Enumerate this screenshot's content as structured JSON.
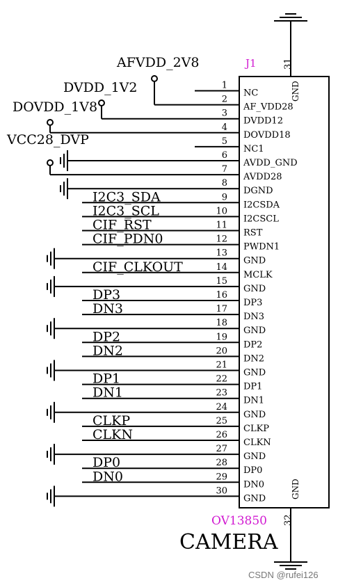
{
  "component": {
    "designator": "J1",
    "part": "OV13850",
    "title": "CAMERA",
    "top_pin": "31",
    "top_pin_name": "GND",
    "bottom_pin": "32",
    "bottom_pin_name": "GND"
  },
  "pins": [
    {
      "num": "1",
      "name": "NC"
    },
    {
      "num": "2",
      "name": "AF_VDD28"
    },
    {
      "num": "3",
      "name": "DVDD12"
    },
    {
      "num": "4",
      "name": "DOVDD18"
    },
    {
      "num": "5",
      "name": "NC1"
    },
    {
      "num": "6",
      "name": "AVDD_GND"
    },
    {
      "num": "7",
      "name": "AVDD28"
    },
    {
      "num": "8",
      "name": "DGND"
    },
    {
      "num": "9",
      "name": "I2CSDA"
    },
    {
      "num": "10",
      "name": "I2CSCL"
    },
    {
      "num": "11",
      "name": "RST"
    },
    {
      "num": "12",
      "name": "PWDN1"
    },
    {
      "num": "13",
      "name": "GND"
    },
    {
      "num": "14",
      "name": "MCLK"
    },
    {
      "num": "15",
      "name": "GND"
    },
    {
      "num": "16",
      "name": "DP3"
    },
    {
      "num": "17",
      "name": "DN3"
    },
    {
      "num": "18",
      "name": "GND"
    },
    {
      "num": "19",
      "name": "DP2"
    },
    {
      "num": "20",
      "name": "DN2"
    },
    {
      "num": "21",
      "name": "GND"
    },
    {
      "num": "22",
      "name": "DP1"
    },
    {
      "num": "23",
      "name": "DN1"
    },
    {
      "num": "24",
      "name": "GND"
    },
    {
      "num": "25",
      "name": "CLKP"
    },
    {
      "num": "26",
      "name": "CLKN"
    },
    {
      "num": "27",
      "name": "GND"
    },
    {
      "num": "28",
      "name": "DP0"
    },
    {
      "num": "29",
      "name": "DN0"
    },
    {
      "num": "30",
      "name": "GND"
    }
  ],
  "power_nets": {
    "afvdd": "AFVDD_2V8",
    "dvdd": "DVDD_1V2",
    "dovdd": "DOVDD_1V8",
    "vcc": "VCC28_DVP"
  },
  "signal_nets": {
    "9": "I2C3_SDA",
    "10": "I2C3_SCL",
    "11": "CIF_RST",
    "12": "CIF_PDN0",
    "14": "CIF_CLKOUT",
    "16": "DP3",
    "17": "DN3",
    "19": "DP2",
    "20": "DN2",
    "22": "DP1",
    "23": "DN1",
    "25": "CLKP",
    "26": "CLKN",
    "28": "DP0",
    "29": "DN0"
  },
  "watermark": "CSDN @rufei126",
  "colors": {
    "ink": "#000000",
    "ref": "#d11ad1",
    "watermark": "#777777"
  }
}
